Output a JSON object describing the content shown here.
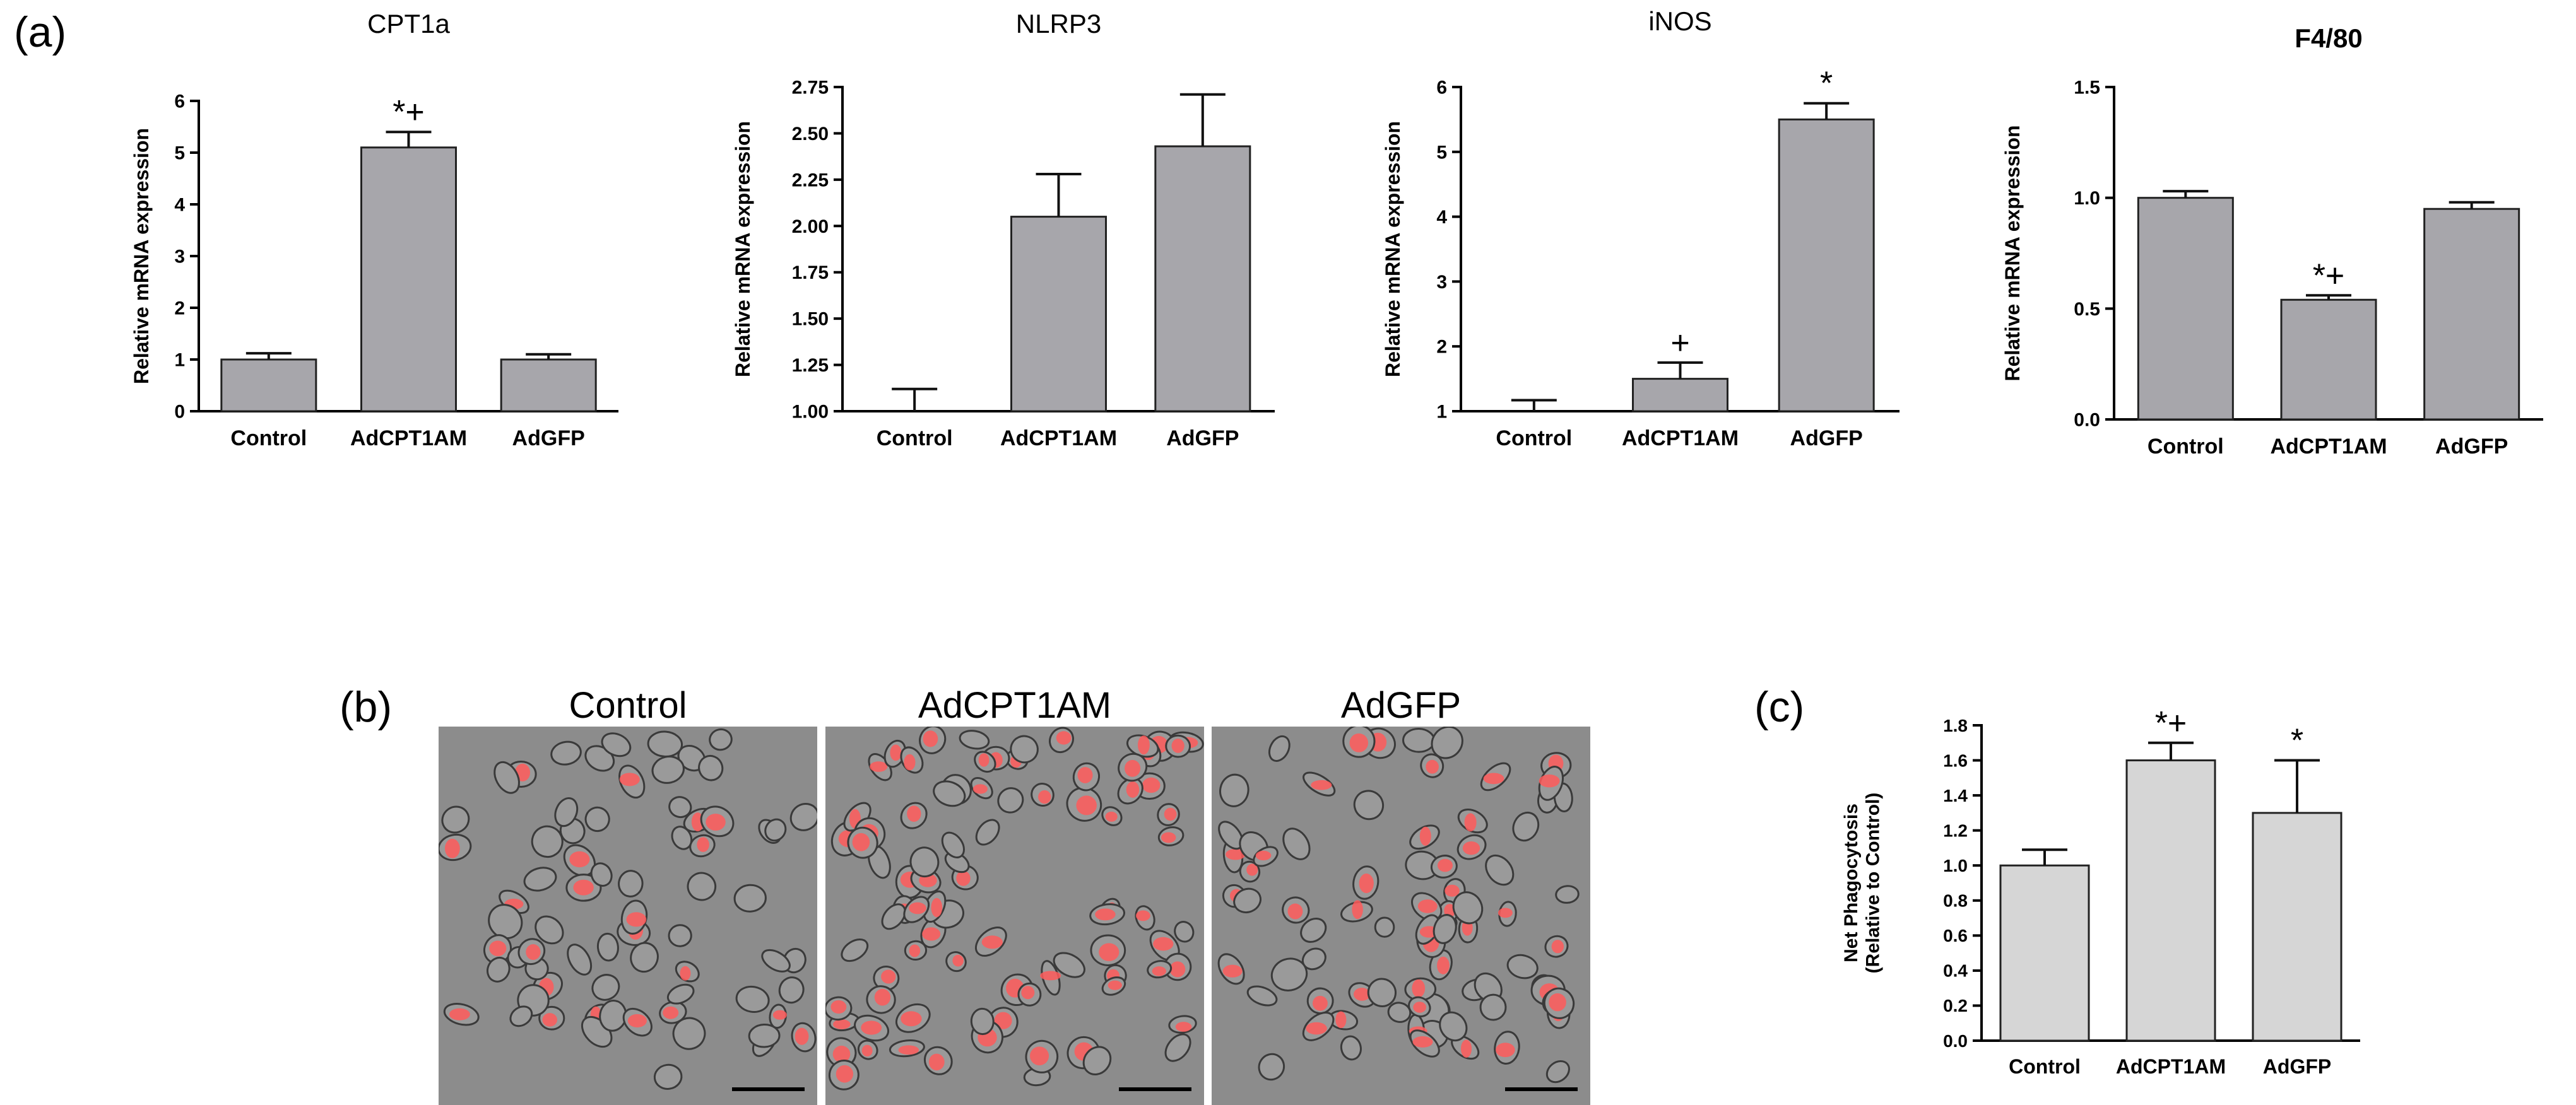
{
  "panel_labels": {
    "a": "(a)",
    "b": "(b)",
    "c": "(c)"
  },
  "micrograph_labels": [
    "Control",
    "AdCPT1AM",
    "AdGFP"
  ],
  "colors": {
    "bar_dark": "#a7a6ab",
    "bar_light": "#d6d6d6",
    "fluor": "#ff5a5a",
    "micro_bg": "#8c8c8c"
  },
  "chart_data": [
    {
      "type": "bar",
      "title": "CPT1a",
      "ylabel": "Relative mRNA expression",
      "categories": [
        "Control",
        "AdCPT1AM",
        "AdGFP"
      ],
      "values": [
        1.0,
        5.1,
        1.0
      ],
      "errors": [
        0.12,
        0.3,
        0.1
      ],
      "annotations": [
        "",
        "*+",
        ""
      ],
      "ylim": [
        0,
        6
      ],
      "yticks": [
        "0",
        "1",
        "2",
        "3",
        "4",
        "5",
        "6"
      ],
      "ytick_values": [
        0,
        1,
        2,
        3,
        4,
        5,
        6
      ]
    },
    {
      "type": "bar",
      "title": "NLRP3",
      "ylabel": "Relative mRNA expression",
      "categories": [
        "Control",
        "AdCPT1AM",
        "AdGFP"
      ],
      "values": [
        1.0,
        2.05,
        2.43
      ],
      "errors": [
        0.12,
        0.23,
        0.28
      ],
      "annotations": [
        "",
        "",
        ""
      ],
      "ylim": [
        1.0,
        2.75
      ],
      "yticks": [
        "1.00",
        "1.25",
        "1.50",
        "1.75",
        "2.00",
        "2.25",
        "2.50",
        "2.75"
      ],
      "ytick_values": [
        1.0,
        1.25,
        1.5,
        1.75,
        2.0,
        2.25,
        2.5,
        2.75
      ]
    },
    {
      "type": "bar",
      "title": "iNOS",
      "ylabel": "Relative mRNA expression",
      "categories": [
        "Control",
        "AdCPT1AM",
        "AdGFP"
      ],
      "values": [
        1.0,
        1.5,
        5.5
      ],
      "errors": [
        0.17,
        0.25,
        0.25
      ],
      "annotations": [
        "",
        "+",
        "*"
      ],
      "ylim": [
        1,
        6
      ],
      "yticks": [
        "1",
        "2",
        "3",
        "4",
        "5",
        "6"
      ],
      "ytick_values": [
        1,
        2,
        3,
        4,
        5,
        6
      ]
    },
    {
      "type": "bar",
      "title": "F4/80",
      "ylabel": "Relative mRNA expression",
      "categories": [
        "Control",
        "AdCPT1AM",
        "AdGFP"
      ],
      "values": [
        1.0,
        0.54,
        0.95
      ],
      "errors": [
        0.03,
        0.02,
        0.03
      ],
      "annotations": [
        "",
        "*+",
        ""
      ],
      "ylim": [
        0,
        1.5
      ],
      "yticks": [
        "0.0",
        "0.5",
        "1.0",
        "1.5"
      ],
      "ytick_values": [
        0,
        0.5,
        1.0,
        1.5
      ]
    },
    {
      "type": "bar",
      "title": "",
      "ylabel": "Net Phagocytosis\n(Relative to Control)",
      "categories": [
        "Control",
        "AdCPT1AM",
        "AdGFP"
      ],
      "values": [
        1.0,
        1.6,
        1.3
      ],
      "errors": [
        0.09,
        0.1,
        0.3
      ],
      "annotations": [
        "",
        "*+",
        "*"
      ],
      "ylim": [
        0,
        1.8
      ],
      "yticks": [
        "0.0",
        "0.2",
        "0.4",
        "0.6",
        "0.8",
        "1.0",
        "1.2",
        "1.4",
        "1.6",
        "1.8"
      ],
      "ytick_values": [
        0,
        0.2,
        0.4,
        0.6,
        0.8,
        1.0,
        1.2,
        1.4,
        1.6,
        1.8
      ]
    }
  ]
}
